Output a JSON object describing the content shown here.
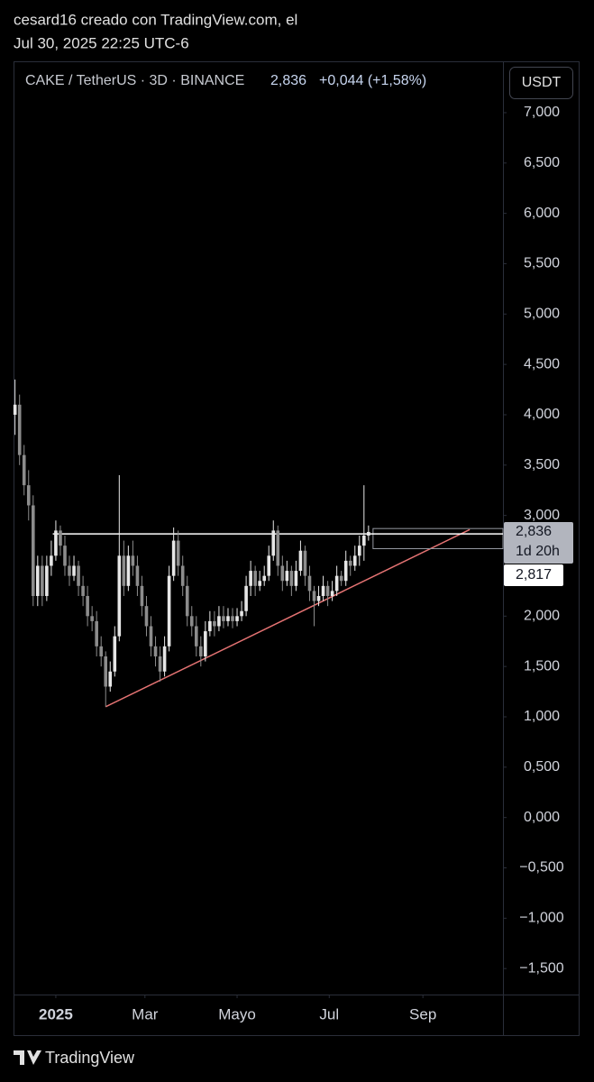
{
  "header": {
    "line1": "cesard16 creado con TradingView.com, el",
    "line2": "Jul 30, 2025 22:25 UTC-6"
  },
  "footer": {
    "brand": "TradingView"
  },
  "chart_data": {
    "type": "candlestick",
    "legend": {
      "symbol": "CAKE / TetherUS · 3D · BINANCE",
      "price": {
        "value": 2.836,
        "label": "2,836"
      },
      "change": "+0,044 (+1,58%)"
    },
    "currency": "USDT",
    "up_color": "#e6e6e6",
    "down_color": "#8c8c8c",
    "x": [
      -27,
      -24,
      -21,
      -18,
      -15,
      -12,
      -9,
      -6,
      -3,
      0,
      3,
      6,
      9,
      12,
      15,
      18,
      21,
      24,
      27,
      30,
      33,
      36,
      39,
      42,
      45,
      48,
      51,
      54,
      57,
      60,
      63,
      66,
      69,
      72,
      75,
      78,
      81,
      84,
      87,
      90,
      93,
      96,
      99,
      102,
      105,
      108,
      111,
      114,
      117,
      120,
      123,
      126,
      129,
      132,
      135,
      138,
      141,
      144,
      147,
      150,
      153,
      156,
      159,
      162,
      165,
      168,
      171,
      174,
      177,
      180,
      183,
      186,
      189,
      192,
      195,
      198,
      201,
      204,
      207
    ],
    "series": [
      {
        "open": [
          4.0,
          4.1,
          3.6,
          3.3,
          3.1,
          2.2,
          2.5,
          2.2,
          2.5,
          2.6,
          2.85,
          2.7,
          2.5,
          2.4,
          2.5,
          2.3,
          2.2,
          2.0,
          1.95,
          1.7,
          1.6,
          1.3,
          1.45,
          1.8,
          2.6,
          2.3,
          2.6,
          2.5,
          2.3,
          2.1,
          1.9,
          1.7,
          1.6,
          1.45,
          1.7,
          2.4,
          2.75,
          2.5,
          2.3,
          2.0,
          1.9,
          1.7,
          1.6,
          1.85,
          1.95,
          1.9,
          2.0,
          1.95,
          2.0,
          1.95,
          2.0,
          2.05,
          2.3,
          2.45,
          2.3,
          2.35,
          2.4,
          2.6,
          2.85,
          2.5,
          2.35,
          2.45,
          2.3,
          2.45,
          2.65,
          2.4,
          2.25,
          2.15,
          2.2,
          2.3,
          2.2,
          2.25,
          2.4,
          2.35,
          2.55,
          2.5,
          2.6,
          2.7,
          2.8
        ],
        "high": [
          4.35,
          4.2,
          3.7,
          3.45,
          3.2,
          2.6,
          2.6,
          2.6,
          2.75,
          2.95,
          2.9,
          2.8,
          2.6,
          2.6,
          2.55,
          2.4,
          2.3,
          2.1,
          2.05,
          1.8,
          1.65,
          1.55,
          1.9,
          3.4,
          2.75,
          2.7,
          2.75,
          2.6,
          2.4,
          2.2,
          2.0,
          1.8,
          1.7,
          1.8,
          2.5,
          2.88,
          2.85,
          2.6,
          2.4,
          2.1,
          2.0,
          1.8,
          1.95,
          2.05,
          2.05,
          2.1,
          2.1,
          2.08,
          2.08,
          2.08,
          2.15,
          2.4,
          2.55,
          2.5,
          2.45,
          2.5,
          2.7,
          2.95,
          2.9,
          2.6,
          2.55,
          2.5,
          2.55,
          2.75,
          2.7,
          2.5,
          2.3,
          2.3,
          2.4,
          2.35,
          2.35,
          2.5,
          2.45,
          2.65,
          2.6,
          2.7,
          2.8,
          3.3,
          2.9
        ],
        "low": [
          3.8,
          3.5,
          3.2,
          2.95,
          2.1,
          2.1,
          2.1,
          2.15,
          2.4,
          2.55,
          2.6,
          2.4,
          2.3,
          2.35,
          2.2,
          2.1,
          1.9,
          1.85,
          1.6,
          1.5,
          1.1,
          1.25,
          1.4,
          1.75,
          2.2,
          2.25,
          2.4,
          2.2,
          2.0,
          1.8,
          1.6,
          1.5,
          1.35,
          1.4,
          1.65,
          2.35,
          2.4,
          2.2,
          1.9,
          1.8,
          1.6,
          1.5,
          1.55,
          1.8,
          1.8,
          1.85,
          1.88,
          1.9,
          1.88,
          1.9,
          1.95,
          2.0,
          2.2,
          2.2,
          2.25,
          2.3,
          2.35,
          2.55,
          2.4,
          2.25,
          2.3,
          2.2,
          2.25,
          2.4,
          2.3,
          2.15,
          1.9,
          2.1,
          2.15,
          2.1,
          2.15,
          2.2,
          2.3,
          2.3,
          2.4,
          2.45,
          2.5,
          2.55,
          2.75
        ],
        "close": [
          4.1,
          3.6,
          3.3,
          3.1,
          2.2,
          2.5,
          2.2,
          2.5,
          2.6,
          2.85,
          2.7,
          2.5,
          2.4,
          2.5,
          2.3,
          2.2,
          2.0,
          1.95,
          1.7,
          1.6,
          1.3,
          1.45,
          1.8,
          2.6,
          2.3,
          2.6,
          2.5,
          2.3,
          2.1,
          1.9,
          1.7,
          1.6,
          1.45,
          1.7,
          2.4,
          2.75,
          2.5,
          2.3,
          2.0,
          1.9,
          1.7,
          1.6,
          1.85,
          1.95,
          1.9,
          2.0,
          1.95,
          2.0,
          1.95,
          2.0,
          2.05,
          2.3,
          2.45,
          2.3,
          2.35,
          2.4,
          2.6,
          2.85,
          2.5,
          2.35,
          2.45,
          2.3,
          2.45,
          2.65,
          2.4,
          2.25,
          2.15,
          2.2,
          2.3,
          2.2,
          2.25,
          2.4,
          2.35,
          2.55,
          2.5,
          2.6,
          2.7,
          2.8,
          2.836
        ]
      }
    ],
    "xlim": [
      -28,
      296
    ],
    "xticks": [
      {
        "value": 0,
        "label": "2025"
      },
      {
        "value": 59,
        "label": "Mar"
      },
      {
        "value": 120,
        "label": "Mayo"
      },
      {
        "value": 181,
        "label": "Jul"
      },
      {
        "value": 243,
        "label": "Sep"
      }
    ],
    "ylim": [
      -1.758,
      7.51
    ],
    "yticks": [
      {
        "value": 7,
        "label": "7,000"
      },
      {
        "value": 6.5,
        "label": "6,500"
      },
      {
        "value": 6,
        "label": "6,000"
      },
      {
        "value": 5.5,
        "label": "5,500"
      },
      {
        "value": 5,
        "label": "5,000"
      },
      {
        "value": 4.5,
        "label": "4,500"
      },
      {
        "value": 4,
        "label": "4,000"
      },
      {
        "value": 3.5,
        "label": "3,500"
      },
      {
        "value": 3,
        "label": "3,000"
      },
      {
        "value": 2,
        "label": "2,000"
      },
      {
        "value": 1.5,
        "label": "1,500"
      },
      {
        "value": 1,
        "label": "1,000"
      },
      {
        "value": 0.5,
        "label": "0,500"
      },
      {
        "value": 0,
        "label": "0,000"
      },
      {
        "value": -0.5,
        "label": "−0,500"
      },
      {
        "value": -1,
        "label": "−1,000"
      },
      {
        "value": -1.5,
        "label": "−1,500"
      }
    ],
    "last_price": {
      "value": 2.836,
      "label": "2,836",
      "countdown": "1d 20h"
    },
    "hline": {
      "value": 2.817,
      "label": "2,817",
      "x_start": -2
    },
    "trendline": {
      "x1": 33,
      "y1": 1.1,
      "x2": 274,
      "y2": 2.86,
      "color": "#e57373"
    },
    "box": {
      "x1": 210,
      "x2": 296,
      "y1": 2.87,
      "y2": 2.67
    }
  }
}
